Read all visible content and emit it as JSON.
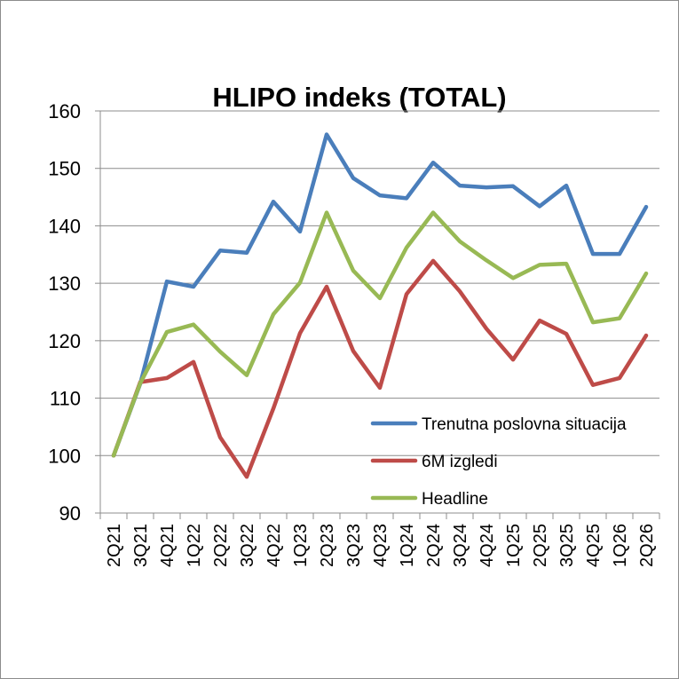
{
  "chart_data": {
    "type": "line",
    "title": "HLIPO indeks (TOTAL)",
    "xlabel": "",
    "ylabel": "",
    "ylim": [
      90,
      160
    ],
    "y_ticks": [
      90,
      100,
      110,
      120,
      130,
      140,
      150,
      160
    ],
    "grid": true,
    "legend_position": "lower-right",
    "categories": [
      "2Q21",
      "3Q21",
      "4Q21",
      "1Q22",
      "2Q22",
      "3Q22",
      "4Q22",
      "1Q23",
      "2Q23",
      "3Q23",
      "4Q23",
      "1Q24",
      "2Q24",
      "3Q24",
      "4Q24",
      "1Q25",
      "2Q25",
      "3Q25",
      "4Q25",
      "1Q26",
      "2Q26"
    ],
    "series": [
      {
        "name": "Trenutna poslovna situacija",
        "color": "#4a7ebb",
        "values": [
          100,
          112.5,
          130.3,
          129.4,
          135.7,
          135.3,
          144.2,
          139.0,
          155.9,
          148.3,
          145.3,
          144.8,
          151.0,
          147.0,
          146.7,
          146.9,
          143.4,
          147.0,
          135.1,
          135.1,
          143.3
        ]
      },
      {
        "name": "6M izgledi",
        "color": "#be4b48",
        "values": [
          100,
          112.8,
          113.5,
          116.3,
          103.2,
          96.3,
          108.2,
          121.3,
          129.4,
          118.2,
          111.8,
          128.1,
          133.9,
          128.6,
          122.1,
          116.7,
          123.5,
          121.2,
          112.3,
          113.5,
          120.9
        ]
      },
      {
        "name": "Headline",
        "color": "#98b954",
        "values": [
          100,
          112.6,
          121.5,
          122.8,
          118.1,
          114.0,
          124.6,
          130.1,
          142.3,
          132.2,
          127.4,
          136.2,
          142.3,
          137.3,
          134.0,
          130.9,
          133.2,
          133.4,
          123.2,
          123.9,
          131.7
        ]
      }
    ]
  }
}
